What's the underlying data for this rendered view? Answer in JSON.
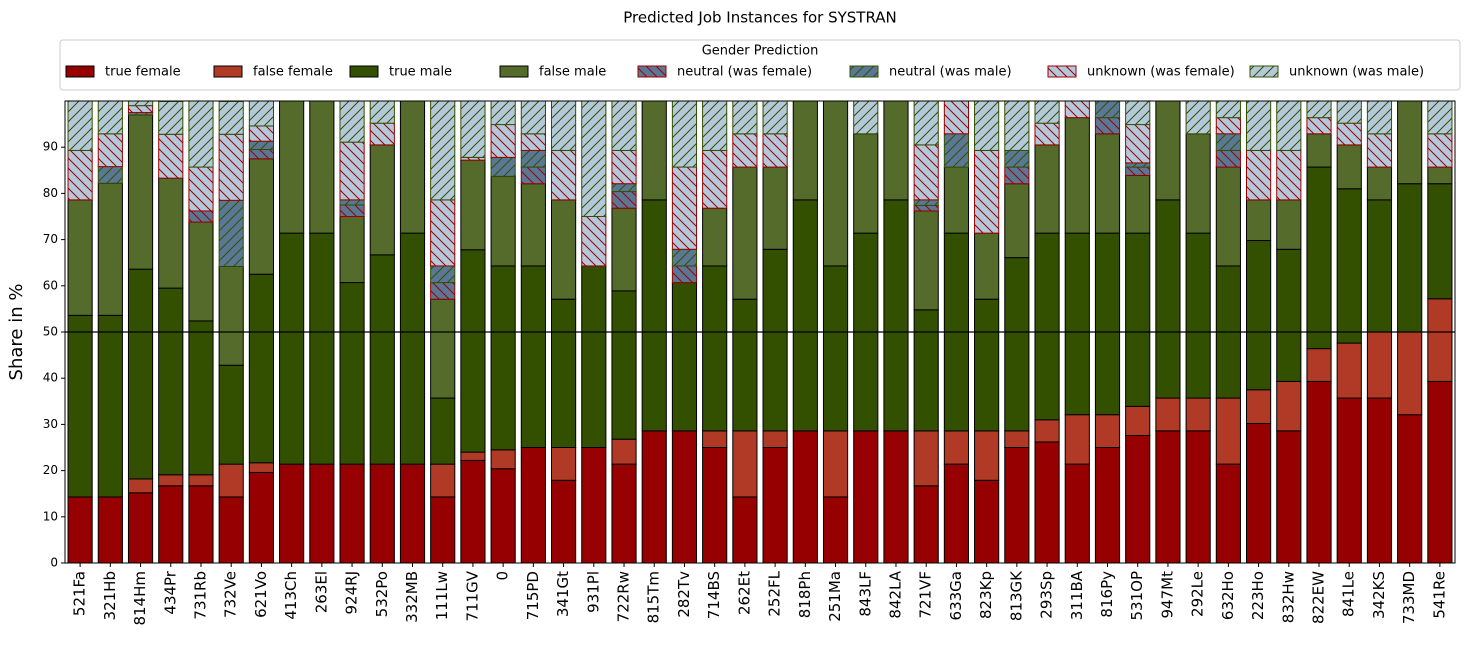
{
  "chart_data": {
    "type": "stacked_bar",
    "title": "Predicted Job Instances for SYSTRAN",
    "y_label": "Share in %",
    "legend_title": "Gender Prediction",
    "legend_position": "top",
    "hline": 50,
    "ylim": [
      0,
      100
    ],
    "yticks": [
      0,
      10,
      20,
      30,
      40,
      50,
      60,
      70,
      80,
      90
    ],
    "categories": [
      "521Fa",
      "321Hb",
      "814Hm",
      "434Pr",
      "731Rb",
      "732Ve",
      "621Vo",
      "413Ch",
      "263El",
      "924RJ",
      "532Po",
      "332MB",
      "111Lw",
      "711GV",
      "0",
      "715PD",
      "341Gt",
      "931Pl",
      "722Rw",
      "815Tm",
      "282Tv",
      "714BS",
      "262Et",
      "252FL",
      "818Ph",
      "251Ma",
      "843LF",
      "842LA",
      "721VF",
      "633Ga",
      "823Kp",
      "813GK",
      "293Sp",
      "311BA",
      "816Py",
      "531OP",
      "947Mt",
      "292Le",
      "632Ho",
      "223Ho",
      "832Hw",
      "822EW",
      "841Le",
      "342KS",
      "733MD",
      "541Re"
    ],
    "series": [
      {
        "name": "true female",
        "color": "#960000",
        "edgecolor": "#000000",
        "values": [
          14.3,
          14.3,
          15.2,
          16.7,
          16.7,
          14.3,
          19.6,
          21.4,
          21.4,
          21.4,
          21.4,
          21.4,
          14.3,
          22.2,
          20.4,
          25,
          17.9,
          25,
          21.4,
          28.6,
          28.6,
          25,
          14.3,
          25,
          28.6,
          14.3,
          28.6,
          28.6,
          16.7,
          21.4,
          17.9,
          25,
          26.2,
          21.4,
          25,
          27.6,
          28.6,
          28.6,
          21.4,
          30.2,
          28.6,
          39.3,
          35.7,
          35.7,
          32.1,
          39.3
        ]
      },
      {
        "name": "false female",
        "color": "#b03a26",
        "edgecolor": "#000000",
        "values": [
          0,
          0,
          3.0,
          2.4,
          2.4,
          7.1,
          2.1,
          0,
          0,
          0,
          0,
          0,
          7.1,
          1.8,
          4.1,
          0,
          7.1,
          0,
          5.4,
          0,
          0,
          3.6,
          14.3,
          3.6,
          0,
          14.3,
          0,
          0,
          11.9,
          7.2,
          10.7,
          3.6,
          4.8,
          10.7,
          7.1,
          6.3,
          7.1,
          7.1,
          14.3,
          7.3,
          10.7,
          7.1,
          11.9,
          14.3,
          17.9,
          17.9
        ]
      },
      {
        "name": "true male",
        "color": "#325000",
        "edgecolor": "#000000",
        "values": [
          39.3,
          39.3,
          45.4,
          40.4,
          33.3,
          21.4,
          40.8,
          50,
          50,
          39.3,
          45.3,
          50,
          14.3,
          43.8,
          39.8,
          39.3,
          32.1,
          39.3,
          32.1,
          50,
          32.1,
          35.7,
          28.5,
          39.3,
          50,
          35.7,
          42.8,
          50,
          26.2,
          42.8,
          28.5,
          37.5,
          40.4,
          39.3,
          39.3,
          37.5,
          42.9,
          35.7,
          28.6,
          32.3,
          28.6,
          39.3,
          33.4,
          28.6,
          32.1,
          24.9
        ]
      },
      {
        "name": "false male",
        "color": "#556b2b",
        "edgecolor": "#000000",
        "values": [
          25,
          28.6,
          33.4,
          23.8,
          21.4,
          21.4,
          25,
          28.6,
          28.6,
          14.3,
          23.8,
          28.6,
          21.4,
          19.4,
          19.4,
          17.8,
          21.5,
          0,
          17.9,
          21.4,
          0,
          12.5,
          28.6,
          17.8,
          21.4,
          35.7,
          21.5,
          21.4,
          21.4,
          14.3,
          14.3,
          16,
          19.1,
          25,
          21.5,
          12.5,
          21.4,
          21.5,
          21.4,
          8.8,
          10.7,
          7.2,
          9.5,
          7.1,
          17.9,
          3.6
        ]
      },
      {
        "name": "neutral (was female)",
        "color": "#5a7896",
        "edgecolor": "#9a0000",
        "hatch": "\\",
        "values": [
          0,
          0,
          0,
          0,
          2.4,
          0,
          2.0,
          0,
          0,
          2.5,
          0,
          0,
          3.6,
          0,
          0,
          3.6,
          0,
          0,
          3.6,
          0,
          3.6,
          0,
          0,
          0,
          0,
          0,
          0,
          0,
          1.2,
          0,
          0,
          3.6,
          0,
          0,
          3.5,
          1.8,
          0,
          0,
          3.6,
          0,
          0,
          0,
          0,
          0,
          0,
          0
        ]
      },
      {
        "name": "neutral (was male)",
        "color": "#5a7896",
        "edgecolor": "#325000",
        "hatch": "/",
        "values": [
          0,
          3.6,
          0.5,
          0,
          0,
          14.3,
          1.8,
          0,
          0,
          1.1,
          0,
          0,
          3.6,
          0,
          4.1,
          3.6,
          0,
          0,
          1.7,
          0,
          3.6,
          0,
          0,
          0,
          0,
          0,
          0,
          0,
          1.2,
          7.2,
          0,
          3.6,
          0,
          0,
          3.6,
          0.9,
          0,
          0,
          3.6,
          0,
          0,
          0,
          0,
          0,
          0,
          0
        ]
      },
      {
        "name": "unknown (was female)",
        "color": "#b4c8dc",
        "edgecolor": "#9a0000",
        "hatch": "\\",
        "values": [
          10.7,
          7.1,
          1.5,
          9.5,
          9.5,
          14.3,
          3.3,
          0,
          0,
          12.5,
          4.7,
          0,
          14.3,
          0.6,
          7.1,
          3.6,
          10.7,
          10.7,
          7.2,
          0,
          17.8,
          12.5,
          7.2,
          7.2,
          0,
          0,
          0,
          0,
          11.9,
          7.1,
          17.9,
          0,
          4.7,
          3.6,
          0,
          8.3,
          0,
          0,
          3.5,
          10.7,
          10.7,
          3.5,
          4.7,
          7.2,
          0,
          7.2
        ]
      },
      {
        "name": "unknown (was male)",
        "color": "#b4c8dc",
        "edgecolor": "#325000",
        "hatch": "/",
        "values": [
          10.7,
          7.1,
          1.0,
          7.1,
          14.3,
          7.1,
          5.4,
          0,
          0,
          8.9,
          4.8,
          0,
          21.4,
          12.2,
          5.1,
          7.1,
          10.7,
          25,
          10.7,
          0,
          14.3,
          10.7,
          7.1,
          7.1,
          0,
          0,
          7.1,
          0,
          9.5,
          0,
          10.7,
          10.7,
          4.8,
          0,
          0,
          5.1,
          0,
          7.1,
          3.6,
          10.7,
          10.7,
          3.6,
          4.8,
          7.1,
          0,
          7.1
        ]
      }
    ]
  }
}
